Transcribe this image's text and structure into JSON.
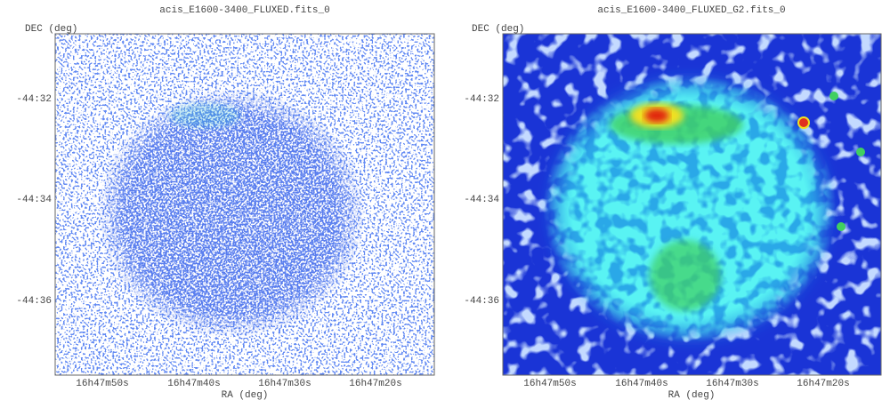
{
  "panels": [
    {
      "title": "acis_E1600-3400_FLUXED.fits_0",
      "y_axis_label": "DEC (deg)",
      "x_axis_label": "RA (deg)",
      "yticks": [
        "-44:32",
        "-44:34",
        "-44:36"
      ],
      "xticks": [
        "16h47m50s",
        "16h47m40s",
        "16h47m30s",
        "16h47m20s"
      ]
    },
    {
      "title": "acis_E1600-3400_FLUXED_G2.fits_0",
      "y_axis_label": "DEC (deg)",
      "x_axis_label": "RA (deg)",
      "yticks": [
        "-44:32",
        "-44:34",
        "-44:36"
      ],
      "xticks": [
        "16h47m50s",
        "16h47m40s",
        "16h47m30s",
        "16h47m20s"
      ]
    }
  ]
}
